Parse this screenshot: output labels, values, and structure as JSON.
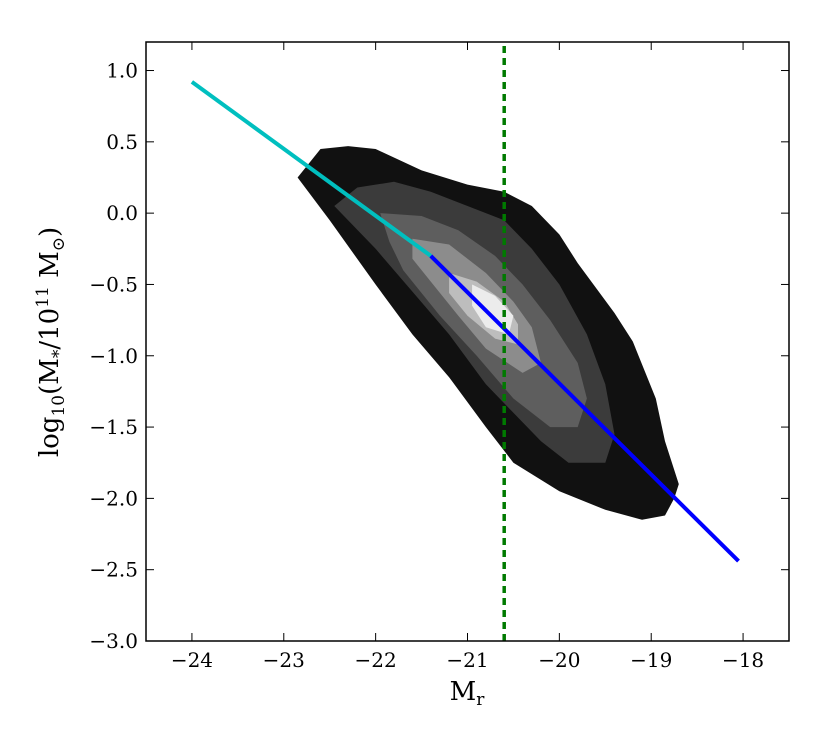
{
  "chart_data": {
    "type": "contour",
    "xlabel": {
      "main": "M",
      "sub": "r"
    },
    "ylabel": {
      "pre": "log",
      "pre_sub": "10",
      "mid": "(M",
      "star": "*",
      "slash": "/10",
      "exp": "11",
      "msun": " M",
      "sun": "⊙",
      "close": ")"
    },
    "xlim": [
      -24.5,
      -17.5
    ],
    "ylim": [
      -3.0,
      1.2
    ],
    "xticks": [
      -24,
      -23,
      -22,
      -21,
      -20,
      -19,
      -18
    ],
    "xtick_labels": [
      "−24",
      "−23",
      "−22",
      "−21",
      "−20",
      "−19",
      "−18"
    ],
    "yticks": [
      1.0,
      0.5,
      0.0,
      -0.5,
      -1.0,
      -1.5,
      -2.0,
      -2.5,
      -3.0
    ],
    "ytick_labels": [
      "1.0",
      "0.5",
      "0.0",
      "−0.5",
      "−1.0",
      "−1.5",
      "−2.0",
      "−2.5",
      "−3.0"
    ],
    "contour_levels": [
      {
        "level": 1,
        "color": "#111111",
        "polygon": [
          [
            -22.85,
            0.25
          ],
          [
            -22.6,
            0.45
          ],
          [
            -22.3,
            0.47
          ],
          [
            -22.0,
            0.45
          ],
          [
            -21.5,
            0.3
          ],
          [
            -21.0,
            0.2
          ],
          [
            -20.6,
            0.15
          ],
          [
            -20.3,
            0.05
          ],
          [
            -20.0,
            -0.15
          ],
          [
            -19.8,
            -0.35
          ],
          [
            -19.4,
            -0.7
          ],
          [
            -19.2,
            -0.9
          ],
          [
            -18.95,
            -1.3
          ],
          [
            -18.85,
            -1.6
          ],
          [
            -18.7,
            -1.9
          ],
          [
            -18.75,
            -2.0
          ],
          [
            -18.85,
            -2.12
          ],
          [
            -19.1,
            -2.15
          ],
          [
            -19.5,
            -2.08
          ],
          [
            -20.0,
            -1.95
          ],
          [
            -20.5,
            -1.75
          ],
          [
            -20.8,
            -1.5
          ],
          [
            -21.2,
            -1.15
          ],
          [
            -21.6,
            -0.85
          ],
          [
            -22.0,
            -0.5
          ],
          [
            -22.5,
            -0.05
          ]
        ]
      },
      {
        "level": 2,
        "color": "#3b3b3b",
        "polygon": [
          [
            -22.45,
            0.05
          ],
          [
            -22.2,
            0.18
          ],
          [
            -21.8,
            0.22
          ],
          [
            -21.4,
            0.15
          ],
          [
            -21.0,
            0.05
          ],
          [
            -20.6,
            -0.05
          ],
          [
            -20.3,
            -0.25
          ],
          [
            -20.0,
            -0.5
          ],
          [
            -19.7,
            -0.85
          ],
          [
            -19.5,
            -1.2
          ],
          [
            -19.4,
            -1.55
          ],
          [
            -19.5,
            -1.75
          ],
          [
            -19.9,
            -1.75
          ],
          [
            -20.2,
            -1.6
          ],
          [
            -20.5,
            -1.4
          ],
          [
            -20.8,
            -1.2
          ],
          [
            -21.2,
            -0.85
          ],
          [
            -21.6,
            -0.55
          ],
          [
            -22.0,
            -0.25
          ]
        ]
      },
      {
        "level": 3,
        "color": "#5e5e5e",
        "polygon": [
          [
            -21.95,
            0.0
          ],
          [
            -21.5,
            -0.02
          ],
          [
            -21.1,
            -0.12
          ],
          [
            -20.7,
            -0.3
          ],
          [
            -20.4,
            -0.5
          ],
          [
            -20.1,
            -0.75
          ],
          [
            -19.8,
            -1.05
          ],
          [
            -19.7,
            -1.3
          ],
          [
            -19.8,
            -1.5
          ],
          [
            -20.1,
            -1.5
          ],
          [
            -20.5,
            -1.3
          ],
          [
            -20.9,
            -1.0
          ],
          [
            -21.3,
            -0.72
          ],
          [
            -21.7,
            -0.4
          ],
          [
            -21.85,
            -0.2
          ]
        ]
      },
      {
        "level": 4,
        "color": "#8c8c8c",
        "polygon": [
          [
            -21.6,
            -0.18
          ],
          [
            -21.2,
            -0.22
          ],
          [
            -20.8,
            -0.42
          ],
          [
            -20.5,
            -0.62
          ],
          [
            -20.3,
            -0.8
          ],
          [
            -20.2,
            -1.05
          ],
          [
            -20.4,
            -1.12
          ],
          [
            -20.8,
            -0.95
          ],
          [
            -21.1,
            -0.72
          ],
          [
            -21.4,
            -0.48
          ],
          [
            -21.6,
            -0.32
          ]
        ]
      },
      {
        "level": 5,
        "color": "#bdbdbd",
        "polygon": [
          [
            -21.2,
            -0.42
          ],
          [
            -20.9,
            -0.48
          ],
          [
            -20.6,
            -0.62
          ],
          [
            -20.45,
            -0.78
          ],
          [
            -20.45,
            -0.92
          ],
          [
            -20.7,
            -0.88
          ],
          [
            -21.0,
            -0.72
          ],
          [
            -21.2,
            -0.56
          ]
        ]
      },
      {
        "level": 6,
        "color": "#ececec",
        "polygon": [
          [
            -20.95,
            -0.5
          ],
          [
            -20.7,
            -0.58
          ],
          [
            -20.5,
            -0.72
          ],
          [
            -20.55,
            -0.85
          ],
          [
            -20.8,
            -0.8
          ],
          [
            -20.95,
            -0.65
          ]
        ]
      }
    ],
    "series": [
      {
        "style": "solid",
        "color": "#00bfbf",
        "x": [
          -24.0,
          -21.4
        ],
        "y": [
          0.92,
          -0.3
        ]
      },
      {
        "style": "solid",
        "color": "#0000ff",
        "x": [
          -21.4,
          -18.05
        ],
        "y": [
          -0.3,
          -2.44
        ]
      },
      {
        "style": "dashed-vertical",
        "color": "#007a00",
        "x": [
          -20.6,
          -20.6
        ],
        "y": [
          -3.0,
          1.2
        ]
      }
    ]
  }
}
